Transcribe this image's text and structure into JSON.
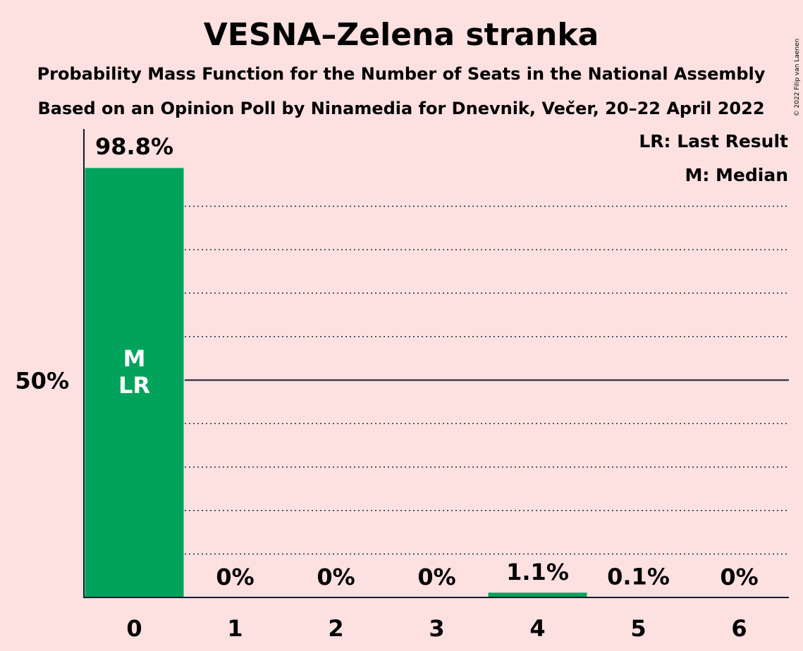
{
  "title": "VESNA–Zelena stranka",
  "subtitle1": "Probability Mass Function for the Number of Seats in the National Assembly",
  "subtitle2": "Based on an Opinion Poll by Ninamedia for Dnevnik, Večer, 20–22 April 2022",
  "copyright": "© 2022 Filip van Laenen",
  "legend": {
    "lr": "LR: Last Result",
    "m": "M: Median"
  },
  "colors": {
    "bar": "#00a35b",
    "background": "#fde0e0",
    "text": "#111b2b"
  },
  "chart_data": {
    "type": "bar",
    "categories": [
      "0",
      "1",
      "2",
      "3",
      "4",
      "5",
      "6"
    ],
    "values": [
      98.8,
      0,
      0,
      0,
      1.1,
      0.1,
      0
    ],
    "value_labels": [
      "98.8%",
      "0%",
      "0%",
      "0%",
      "1.1%",
      "0.1%",
      "0%"
    ],
    "ylim": [
      0,
      100
    ],
    "yticks": [
      {
        "value": 50,
        "label": "50%"
      }
    ],
    "gridlines": [
      10,
      20,
      30,
      40,
      50,
      60,
      70,
      80,
      90
    ],
    "grid": true,
    "legend_position": "top-right",
    "bar_markers": [
      {
        "category": "0",
        "labels": [
          "M",
          "LR"
        ]
      }
    ]
  }
}
